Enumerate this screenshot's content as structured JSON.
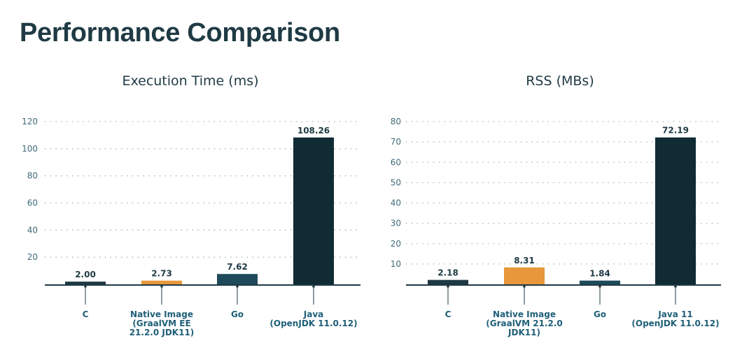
{
  "page": {
    "title": "Performance Comparison"
  },
  "chart_data": [
    {
      "type": "bar",
      "title": "Execution Time (ms)",
      "categories": [
        [
          "C"
        ],
        [
          "Native Image",
          "(GraalVM EE",
          "21.2.0 JDK11)"
        ],
        [
          "Go"
        ],
        [
          "Java",
          "(OpenJDK 11.0.12)"
        ]
      ],
      "values": [
        2.0,
        2.73,
        7.62,
        108.26
      ],
      "data_labels": [
        "2.00",
        "2.73",
        "7.62",
        "108.26"
      ],
      "bar_colors": [
        "#1f3a44",
        "#e8973a",
        "#1f4a5c",
        "#102b33"
      ],
      "ylim": [
        0,
        120
      ],
      "yticks": [
        20,
        40,
        60,
        80,
        100,
        120
      ],
      "grid": true,
      "legend": "none"
    },
    {
      "type": "bar",
      "title": "RSS (MBs)",
      "categories": [
        [
          "C"
        ],
        [
          "Native Image",
          "(GraalVM 21.2.0",
          "JDK11)"
        ],
        [
          "Go"
        ],
        [
          "Java 11",
          "(OpenJDK 11.0.12)"
        ]
      ],
      "values": [
        2.18,
        8.31,
        1.84,
        72.19
      ],
      "data_labels": [
        "2.18",
        "8.31",
        "1.84",
        "72.19"
      ],
      "bar_colors": [
        "#1f3a44",
        "#e8973a",
        "#1f4a5c",
        "#102b33"
      ],
      "ylim": [
        0,
        80
      ],
      "yticks": [
        10,
        20,
        30,
        40,
        50,
        60,
        70,
        80
      ],
      "grid": true,
      "legend": "none"
    }
  ]
}
